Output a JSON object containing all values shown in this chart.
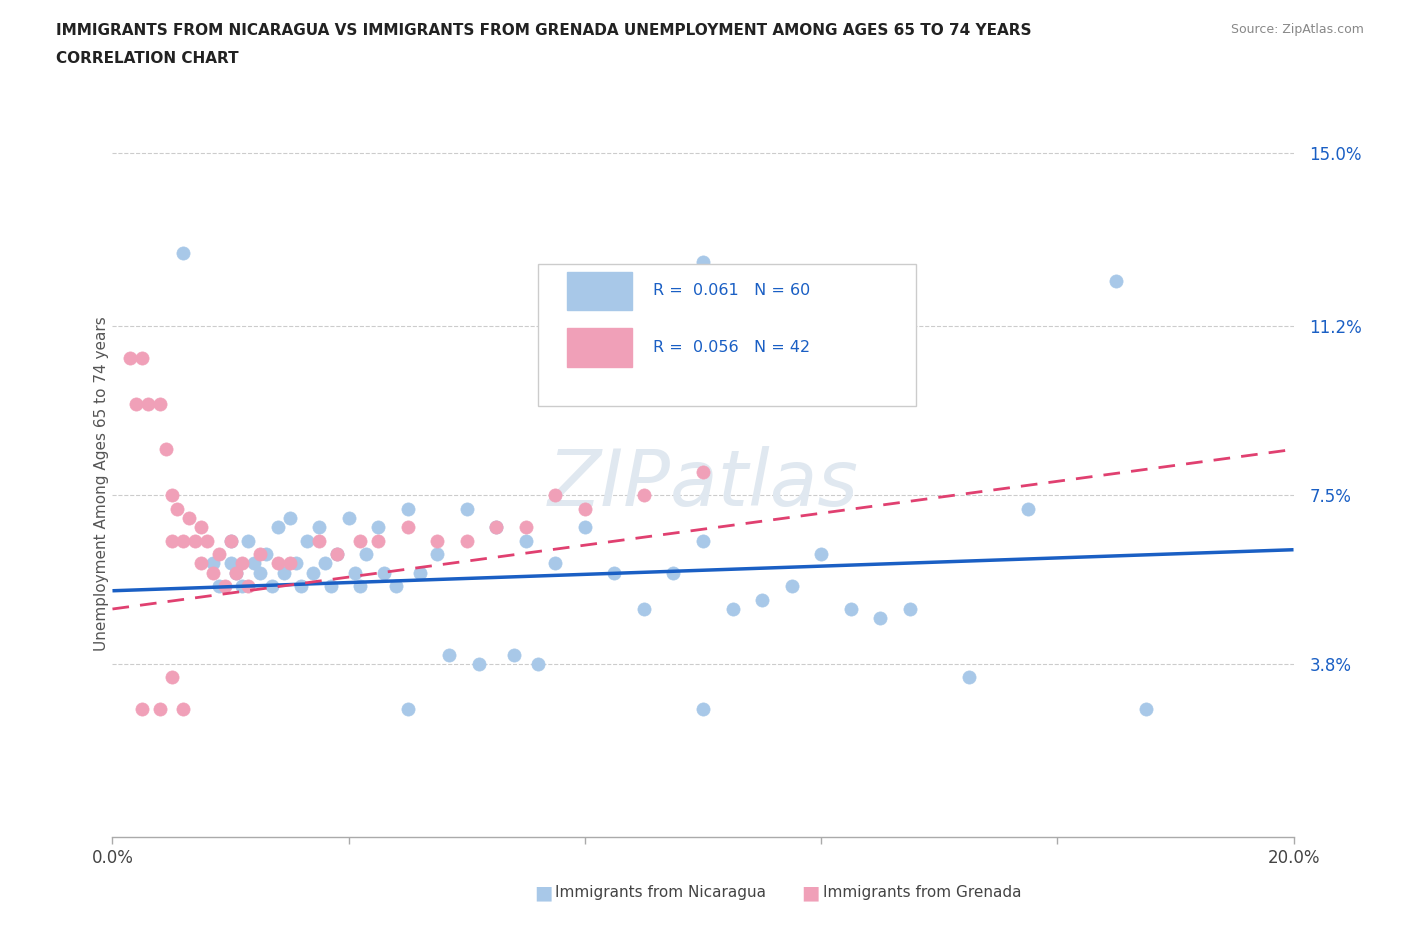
{
  "title_line1": "IMMIGRANTS FROM NICARAGUA VS IMMIGRANTS FROM GRENADA UNEMPLOYMENT AMONG AGES 65 TO 74 YEARS",
  "title_line2": "CORRELATION CHART",
  "source": "Source: ZipAtlas.com",
  "ylabel": "Unemployment Among Ages 65 to 74 years",
  "xlim": [
    0.0,
    0.2
  ],
  "ylim": [
    0.0,
    0.155
  ],
  "ytick_positions": [
    0.038,
    0.075,
    0.112,
    0.15
  ],
  "ytick_labels": [
    "3.8%",
    "7.5%",
    "11.2%",
    "15.0%"
  ],
  "r_nicaragua": 0.061,
  "n_nicaragua": 60,
  "r_grenada": 0.056,
  "n_grenada": 42,
  "color_nicaragua": "#a8c8e8",
  "color_grenada": "#f0a0b8",
  "trendline_nicaragua_color": "#1a5fc4",
  "trendline_grenada_color": "#e04070",
  "watermark": "ZIPatlas",
  "trendline_nic_y0": 0.054,
  "trendline_nic_y1": 0.063,
  "trendline_gren_y0": 0.05,
  "trendline_gren_y1": 0.085,
  "nicaragua_x": [
    0.012,
    0.017,
    0.018,
    0.02,
    0.02,
    0.021,
    0.022,
    0.023,
    0.024,
    0.025,
    0.026,
    0.027,
    0.028,
    0.029,
    0.03,
    0.031,
    0.032,
    0.033,
    0.034,
    0.035,
    0.036,
    0.037,
    0.038,
    0.04,
    0.041,
    0.042,
    0.043,
    0.045,
    0.046,
    0.048,
    0.05,
    0.052,
    0.055,
    0.057,
    0.06,
    0.062,
    0.065,
    0.068,
    0.07,
    0.072,
    0.075,
    0.08,
    0.085,
    0.09,
    0.095,
    0.1,
    0.105,
    0.11,
    0.115,
    0.12,
    0.125,
    0.13,
    0.135,
    0.145,
    0.155,
    0.1,
    0.05,
    0.1,
    0.17,
    0.175
  ],
  "nicaragua_y": [
    0.128,
    0.06,
    0.055,
    0.065,
    0.06,
    0.058,
    0.055,
    0.065,
    0.06,
    0.058,
    0.062,
    0.055,
    0.068,
    0.058,
    0.07,
    0.06,
    0.055,
    0.065,
    0.058,
    0.068,
    0.06,
    0.055,
    0.062,
    0.07,
    0.058,
    0.055,
    0.062,
    0.068,
    0.058,
    0.055,
    0.072,
    0.058,
    0.062,
    0.04,
    0.072,
    0.038,
    0.068,
    0.04,
    0.065,
    0.038,
    0.06,
    0.068,
    0.058,
    0.05,
    0.058,
    0.065,
    0.05,
    0.052,
    0.055,
    0.062,
    0.05,
    0.048,
    0.05,
    0.035,
    0.072,
    0.126,
    0.028,
    0.028,
    0.122,
    0.028
  ],
  "grenada_x": [
    0.003,
    0.004,
    0.005,
    0.006,
    0.008,
    0.009,
    0.01,
    0.01,
    0.011,
    0.012,
    0.013,
    0.014,
    0.015,
    0.015,
    0.016,
    0.017,
    0.018,
    0.019,
    0.02,
    0.021,
    0.022,
    0.023,
    0.025,
    0.028,
    0.03,
    0.035,
    0.038,
    0.042,
    0.045,
    0.05,
    0.055,
    0.06,
    0.065,
    0.07,
    0.075,
    0.08,
    0.09,
    0.1,
    0.005,
    0.008,
    0.012,
    0.01
  ],
  "grenada_y": [
    0.105,
    0.095,
    0.105,
    0.095,
    0.095,
    0.085,
    0.075,
    0.065,
    0.072,
    0.065,
    0.07,
    0.065,
    0.068,
    0.06,
    0.065,
    0.058,
    0.062,
    0.055,
    0.065,
    0.058,
    0.06,
    0.055,
    0.062,
    0.06,
    0.06,
    0.065,
    0.062,
    0.065,
    0.065,
    0.068,
    0.065,
    0.065,
    0.068,
    0.068,
    0.075,
    0.072,
    0.075,
    0.08,
    0.028,
    0.028,
    0.028,
    0.035
  ]
}
